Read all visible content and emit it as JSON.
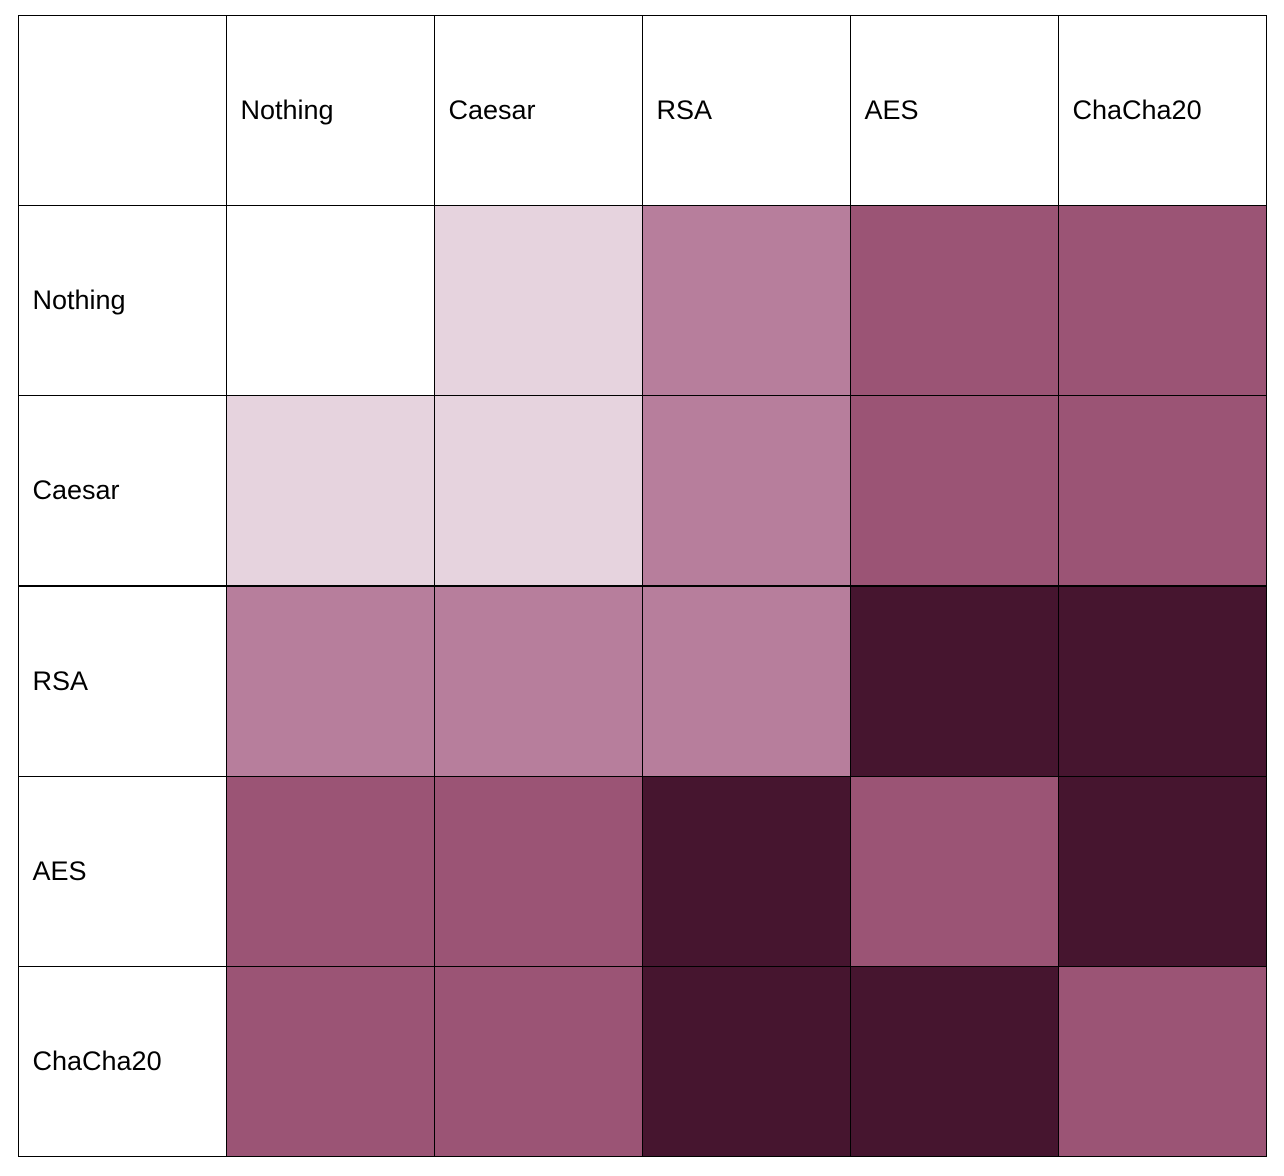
{
  "table": {
    "columns": [
      "Nothing",
      "Caesar",
      "RSA",
      "AES",
      "ChaCha20"
    ],
    "rows": [
      {
        "label": "Nothing",
        "colors": [
          "#ffffff",
          "#e6d3de",
          "#b77e9c",
          "#9b5475",
          "#9b5475"
        ]
      },
      {
        "label": "Caesar",
        "colors": [
          "#e6d3de",
          "#e6d3de",
          "#b77e9c",
          "#9b5475",
          "#9b5475"
        ]
      },
      {
        "label": "RSA",
        "colors": [
          "#b77e9c",
          "#b77e9c",
          "#b77e9c",
          "#46152f",
          "#46152f"
        ]
      },
      {
        "label": "AES",
        "colors": [
          "#9b5475",
          "#9b5475",
          "#46152f",
          "#9b5475",
          "#46152f"
        ]
      },
      {
        "label": "ChaCha20",
        "colors": [
          "#9b5475",
          "#9b5475",
          "#46152f",
          "#46152f",
          "#9b5475"
        ]
      }
    ]
  }
}
